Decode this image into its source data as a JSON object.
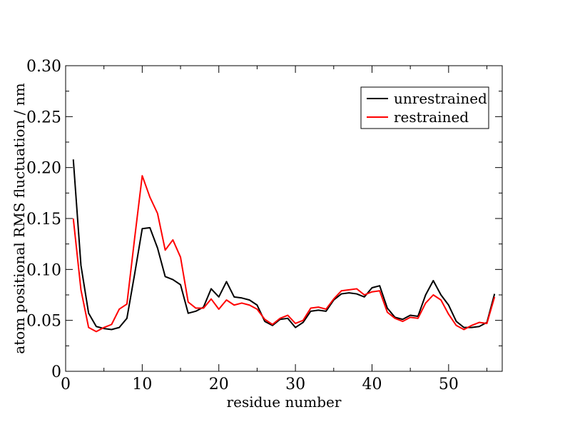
{
  "chart_data": {
    "type": "line",
    "title": "",
    "xlabel": "residue number",
    "ylabel": "atom positional RMS fluctuation / nm",
    "xlim": [
      0,
      57
    ],
    "ylim": [
      0,
      0.3
    ],
    "x_ticks": [
      0,
      10,
      20,
      30,
      40,
      50
    ],
    "x_tick_labels": [
      "0",
      "10",
      "20",
      "30",
      "40",
      "50"
    ],
    "y_ticks": [
      0,
      0.05,
      0.1,
      0.15,
      0.2,
      0.25,
      0.3
    ],
    "y_tick_labels": [
      "0",
      "0.05",
      "0.10",
      "0.15",
      "0.20",
      "0.25",
      "0.30"
    ],
    "grid": false,
    "legend_position": "top-right",
    "x": [
      1,
      2,
      3,
      4,
      5,
      6,
      7,
      8,
      9,
      10,
      11,
      12,
      13,
      14,
      15,
      16,
      17,
      18,
      19,
      20,
      21,
      22,
      23,
      24,
      25,
      26,
      27,
      28,
      29,
      30,
      31,
      32,
      33,
      34,
      35,
      36,
      37,
      38,
      39,
      40,
      41,
      42,
      43,
      44,
      45,
      46,
      47,
      48,
      49,
      50,
      51,
      52,
      53,
      54,
      55,
      56
    ],
    "series": [
      {
        "name": "unrestrained",
        "color": "#000000",
        "values": [
          0.208,
          0.104,
          0.057,
          0.044,
          0.042,
          0.041,
          0.043,
          0.052,
          0.095,
          0.14,
          0.141,
          0.121,
          0.093,
          0.09,
          0.085,
          0.057,
          0.059,
          0.063,
          0.081,
          0.073,
          0.088,
          0.073,
          0.072,
          0.07,
          0.065,
          0.049,
          0.045,
          0.051,
          0.052,
          0.043,
          0.048,
          0.059,
          0.06,
          0.059,
          0.07,
          0.076,
          0.077,
          0.076,
          0.073,
          0.082,
          0.084,
          0.062,
          0.053,
          0.051,
          0.055,
          0.054,
          0.075,
          0.089,
          0.075,
          0.065,
          0.049,
          0.043,
          0.043,
          0.044,
          0.048,
          0.076
        ]
      },
      {
        "name": "restrained",
        "color": "#ff0000",
        "values": [
          0.15,
          0.08,
          0.043,
          0.039,
          0.043,
          0.046,
          0.061,
          0.066,
          0.13,
          0.192,
          0.171,
          0.155,
          0.119,
          0.129,
          0.112,
          0.068,
          0.062,
          0.062,
          0.071,
          0.061,
          0.07,
          0.065,
          0.067,
          0.065,
          0.061,
          0.051,
          0.046,
          0.052,
          0.055,
          0.047,
          0.05,
          0.062,
          0.063,
          0.061,
          0.071,
          0.079,
          0.08,
          0.081,
          0.075,
          0.078,
          0.079,
          0.058,
          0.052,
          0.049,
          0.053,
          0.052,
          0.067,
          0.075,
          0.07,
          0.056,
          0.045,
          0.041,
          0.045,
          0.048,
          0.047,
          0.073
        ]
      }
    ]
  }
}
